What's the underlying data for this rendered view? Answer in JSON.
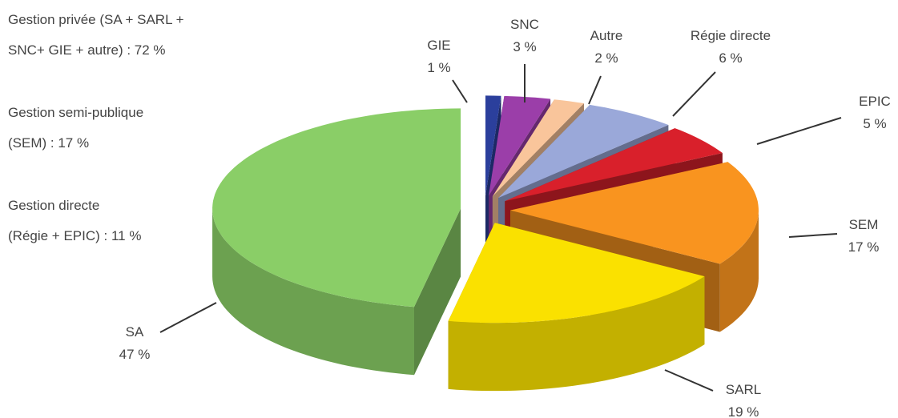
{
  "chart_data": {
    "type": "pie3d",
    "categories": [
      "GIE",
      "SNC",
      "Autre",
      "Régie directe",
      "EPIC",
      "SEM",
      "SARL",
      "SA"
    ],
    "values": [
      1,
      3,
      2,
      6,
      5,
      17,
      19,
      47
    ],
    "value_labels": [
      "1 %",
      "3 %",
      "2 %",
      "6 %",
      "5 %",
      "17 %",
      "19 %",
      "47 %"
    ],
    "colors": [
      "#2b3f9c",
      "#9b3ea9",
      "#f9c59b",
      "#9aa8d9",
      "#d9202b",
      "#f9941f",
      "#fae100",
      "#8ace67"
    ],
    "annotations": [
      [
        "Gestion privée (SA + SARL +",
        "SNC+ GIE + autre) : 72 %"
      ],
      [
        "Gestion semi-publique",
        "(SEM) : 17 %"
      ],
      [
        "Gestion directe",
        "(Régie + EPIC) : 11 %"
      ]
    ]
  }
}
